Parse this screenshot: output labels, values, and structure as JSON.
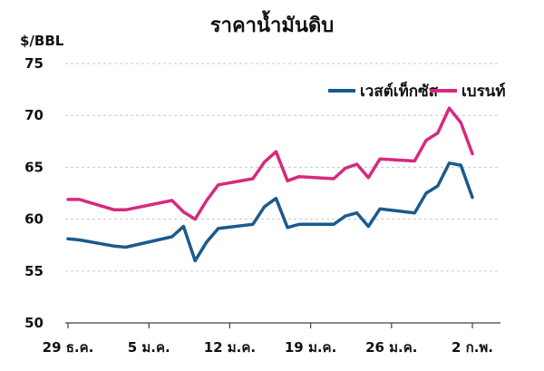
{
  "chart_data": {
    "type": "line",
    "title": "ราคาน้ำมันดิบ",
    "ylabel": "$/BBL",
    "xlabel": "",
    "ylim": [
      50,
      75
    ],
    "yticks": [
      50,
      55,
      60,
      65,
      70,
      75
    ],
    "xtick_labels": [
      "29 ธ.ค.",
      "5 ม.ค.",
      "12 ม.ค.",
      "19 ม.ค.",
      "26 ม.ค.",
      "2 ก.พ."
    ],
    "xtick_index": [
      0,
      7,
      14,
      21,
      28,
      35
    ],
    "grid": "horizontal dashed",
    "legend": "top-right",
    "x": [
      "29 ธ.ค.",
      "",
      "",
      "",
      "",
      "",
      "",
      "5 ม.ค.",
      "",
      "",
      "",
      "",
      "",
      "",
      "12 ม.ค.",
      "",
      "",
      "",
      "",
      "",
      "",
      "19 ม.ค.",
      "",
      "",
      "",
      "",
      "",
      "",
      "26 ม.ค.",
      "",
      "",
      "",
      "",
      "",
      "",
      "2 ก.พ."
    ],
    "series": [
      {
        "name": "เวสต์เท็กซัส",
        "color": "#1a5a8e",
        "values": [
          58.1,
          58.0,
          null,
          null,
          57.4,
          57.3,
          null,
          null,
          null,
          58.3,
          59.3,
          56.0,
          57.8,
          59.1,
          null,
          null,
          59.5,
          61.2,
          62.0,
          59.2,
          59.5,
          null,
          null,
          59.5,
          60.3,
          60.6,
          59.3,
          61.0,
          null,
          null,
          60.6,
          62.5,
          63.2,
          65.4,
          65.2,
          62.1
        ]
      },
      {
        "name": "เบรนท์",
        "color": "#d62a7e",
        "values": [
          61.9,
          61.9,
          null,
          null,
          60.9,
          60.9,
          null,
          null,
          null,
          61.8,
          60.7,
          60.0,
          61.8,
          63.3,
          null,
          null,
          63.9,
          65.5,
          66.5,
          63.7,
          64.1,
          null,
          null,
          63.9,
          64.9,
          65.3,
          64.0,
          65.8,
          null,
          null,
          65.6,
          67.6,
          68.3,
          70.7,
          69.3,
          66.3
        ]
      }
    ]
  }
}
